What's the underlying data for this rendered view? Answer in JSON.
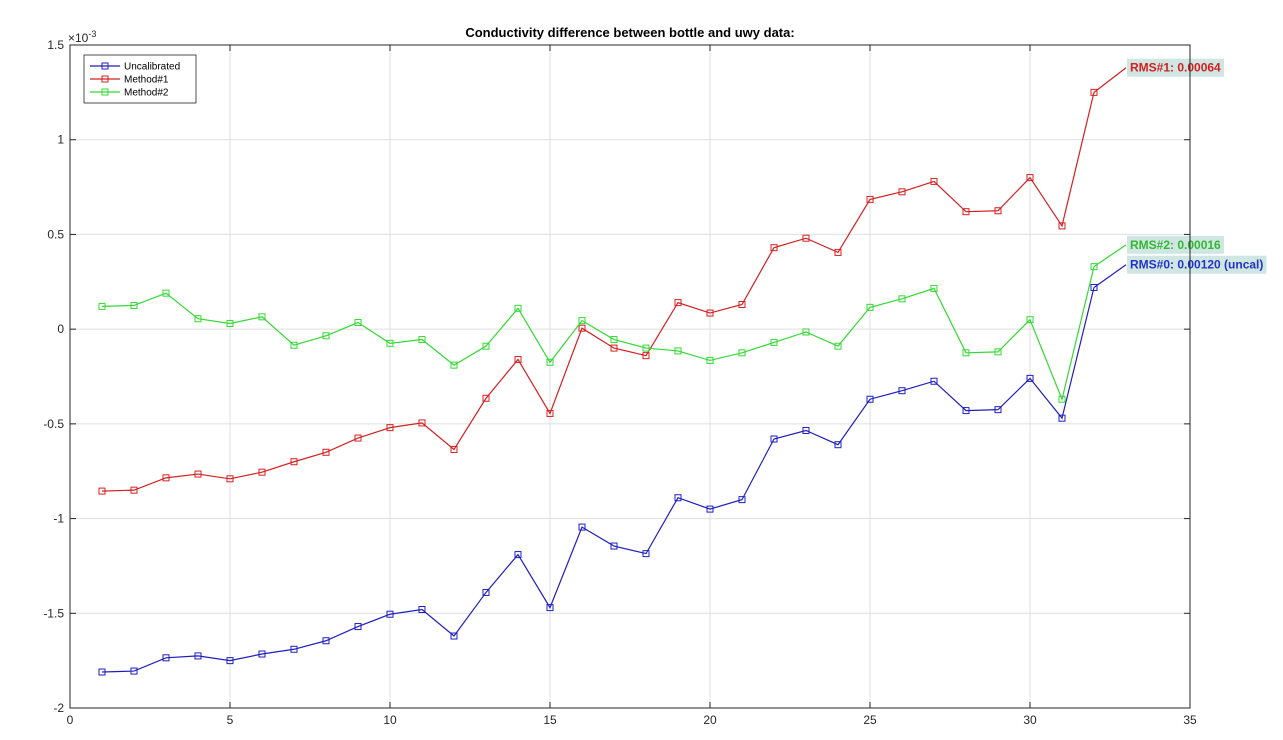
{
  "chart_data": {
    "type": "line",
    "title": "Conductivity difference between bottle and uwy data:",
    "xlabel": "",
    "ylabel": "",
    "xlim": [
      0,
      35
    ],
    "ylim": [
      -2,
      1.5
    ],
    "y_exponent_label": "×10",
    "y_exponent_power": "-3",
    "x_ticks": [
      "0",
      "5",
      "10",
      "15",
      "20",
      "25",
      "30",
      "35"
    ],
    "y_ticks": [
      "-2",
      "-1.5",
      "-1",
      "-0.5",
      "0",
      "0.5",
      "1",
      "1.5"
    ],
    "grid": true,
    "legend_position": "top-left",
    "x": [
      1,
      2,
      3,
      4,
      5,
      6,
      7,
      8,
      9,
      10,
      11,
      12,
      13,
      14,
      15,
      16,
      17,
      18,
      19,
      20,
      21,
      22,
      23,
      24,
      25,
      26,
      27,
      28,
      29,
      30,
      31,
      32
    ],
    "series": [
      {
        "name": "Uncalibrated",
        "color": "#1f1fbf",
        "values": [
          -1.81,
          -1.805,
          -1.735,
          -1.725,
          -1.75,
          -1.715,
          -1.69,
          -1.645,
          -1.57,
          -1.505,
          -1.48,
          -1.62,
          -1.39,
          -1.19,
          -1.47,
          -1.045,
          -1.145,
          -1.185,
          -0.89,
          -0.95,
          -0.9,
          -0.58,
          -0.535,
          -0.61,
          -0.37,
          -0.325,
          -0.275,
          -0.43,
          -0.425,
          -0.26,
          -0.47,
          0.22
        ]
      },
      {
        "name": "Method#1",
        "color": "#d42020",
        "values": [
          -0.855,
          -0.85,
          -0.785,
          -0.765,
          -0.79,
          -0.755,
          -0.7,
          -0.65,
          -0.575,
          -0.52,
          -0.495,
          -0.635,
          -0.365,
          -0.16,
          -0.445,
          0.005,
          -0.1,
          -0.14,
          0.14,
          0.085,
          0.13,
          0.43,
          0.48,
          0.405,
          0.685,
          0.725,
          0.78,
          0.62,
          0.625,
          0.8,
          0.545,
          1.25
        ]
      },
      {
        "name": "Method#2",
        "color": "#33d933",
        "values": [
          0.12,
          0.125,
          0.19,
          0.055,
          0.03,
          0.065,
          -0.085,
          -0.035,
          0.035,
          -0.075,
          -0.055,
          -0.19,
          -0.09,
          0.11,
          -0.175,
          0.045,
          -0.055,
          -0.1,
          -0.115,
          -0.165,
          -0.125,
          -0.07,
          -0.015,
          -0.09,
          0.115,
          0.16,
          0.215,
          -0.125,
          -0.12,
          0.05,
          -0.37,
          0.33
        ]
      }
    ],
    "annotations": [
      {
        "text": "RMS#1: 0.00064",
        "color": "#d42020",
        "anchor_x": 33,
        "anchor_y": 1.38
      },
      {
        "text": "RMS#2: 0.00016",
        "color": "#33b833",
        "anchor_x": 33,
        "anchor_y": 0.445
      },
      {
        "text": "RMS#0: 0.00120 (uncal)",
        "color": "#2233cc",
        "anchor_x": 33,
        "anchor_y": 0.34
      }
    ],
    "annotation_bg": "#cfe6e2"
  }
}
